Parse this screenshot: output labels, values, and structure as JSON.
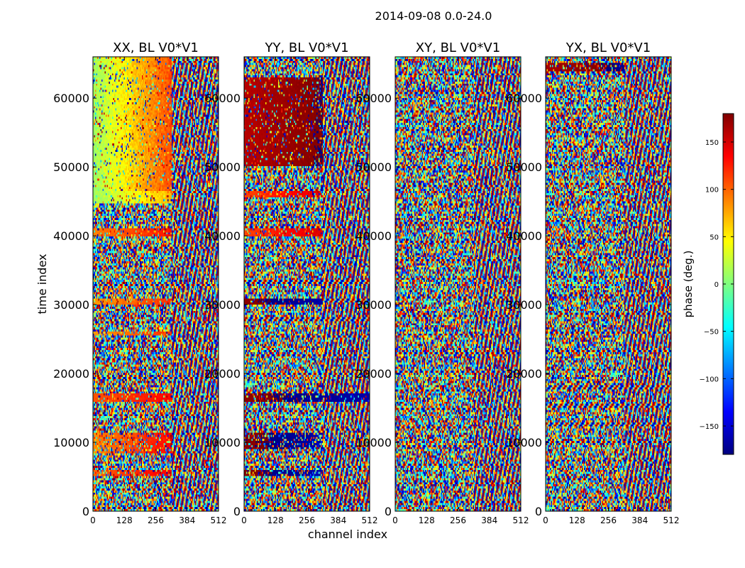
{
  "chart_data": {
    "type": "heatmap",
    "suptitle": "2014-09-08 0.0-24.0",
    "xlabel": "channel index",
    "ylabel": "time index",
    "xlim": [
      0,
      512
    ],
    "ylim": [
      0,
      66000
    ],
    "x_ticks": [
      "0",
      "128",
      "256",
      "384",
      "512"
    ],
    "x_tick_values": [
      0,
      128,
      256,
      384,
      512
    ],
    "y_ticks": [
      "0",
      "10000",
      "20000",
      "30000",
      "40000",
      "50000",
      "60000"
    ],
    "y_tick_values": [
      0,
      10000,
      20000,
      30000,
      40000,
      50000,
      60000
    ],
    "colorbar": {
      "label": "phase (deg.)",
      "range": [
        -180,
        180
      ],
      "tick_labels": [
        "150",
        "100",
        "50",
        "0",
        "−50",
        "−100",
        "−150"
      ],
      "tick_values": [
        150,
        100,
        50,
        0,
        -50,
        -100,
        -150
      ],
      "colormap": "jet",
      "colormap_stops": [
        "#00007f",
        "#0000ff",
        "#007fff",
        "#00ffff",
        "#7fff7f",
        "#ffff00",
        "#ff7f00",
        "#ff0000",
        "#7f0000"
      ]
    },
    "panels": [
      {
        "title": "XX, BL V0*V1",
        "texture": [
          {
            "t0": 46000,
            "t1": 66000,
            "c0": 0,
            "c1": 320,
            "phase": 60,
            "spread": 50,
            "noise": 0.15
          },
          {
            "t0": 44800,
            "t1": 46500,
            "c0": 0,
            "c1": 320,
            "phase": 40,
            "spread": 30,
            "noise": 0.2
          },
          {
            "t0": 40000,
            "t1": 41200,
            "c0": 0,
            "c1": 320,
            "phase": 110,
            "spread": 20,
            "noise": 0.2
          },
          {
            "t0": 30000,
            "t1": 31000,
            "c0": 0,
            "c1": 320,
            "phase": 100,
            "spread": 20,
            "noise": 0.2
          },
          {
            "t0": 25500,
            "t1": 26200,
            "c0": 0,
            "c1": 320,
            "phase": 100,
            "spread": 20,
            "noise": 0.3
          },
          {
            "t0": 16000,
            "t1": 17000,
            "c0": 0,
            "c1": 320,
            "phase": 120,
            "spread": 15,
            "noise": 0.2
          },
          {
            "t0": 8500,
            "t1": 11500,
            "c0": 0,
            "c1": 320,
            "phase": 110,
            "spread": 25,
            "noise": 0.3
          },
          {
            "t0": 5000,
            "t1": 6000,
            "c0": 0,
            "c1": 320,
            "phase": 120,
            "spread": 20,
            "noise": 0.3
          }
        ]
      },
      {
        "title": "YY, BL V0*V1",
        "texture": [
          {
            "t0": 50000,
            "t1": 63000,
            "c0": 0,
            "c1": 320,
            "phase": 170,
            "spread": 10,
            "noise": 0.15
          },
          {
            "t0": 45500,
            "t1": 46500,
            "c0": 0,
            "c1": 320,
            "phase": 130,
            "spread": 20,
            "noise": 0.2
          },
          {
            "t0": 40000,
            "t1": 41000,
            "c0": 0,
            "c1": 320,
            "phase": 130,
            "spread": 20,
            "noise": 0.2
          },
          {
            "t0": 30000,
            "t1": 31000,
            "c0": 0,
            "c1": 320,
            "phase": -175,
            "spread": 10,
            "noise": 0.15
          },
          {
            "t0": 16000,
            "t1": 17000,
            "c0": 0,
            "c1": 520,
            "phase": -175,
            "spread": 10,
            "noise": 0.2
          },
          {
            "t0": 9000,
            "t1": 11500,
            "c0": 0,
            "c1": 320,
            "phase": -175,
            "spread": 10,
            "noise": 0.3
          },
          {
            "t0": 5000,
            "t1": 6000,
            "c0": 0,
            "c1": 320,
            "phase": -175,
            "spread": 10,
            "noise": 0.3
          }
        ]
      },
      {
        "title": "XY, BL V0*V1",
        "texture": []
      },
      {
        "title": "YX, BL V0*V1",
        "texture": [
          {
            "t0": 64000,
            "t1": 65000,
            "c0": 0,
            "c1": 320,
            "phase": 175,
            "spread": 10,
            "noise": 0.2
          }
        ]
      }
    ]
  }
}
